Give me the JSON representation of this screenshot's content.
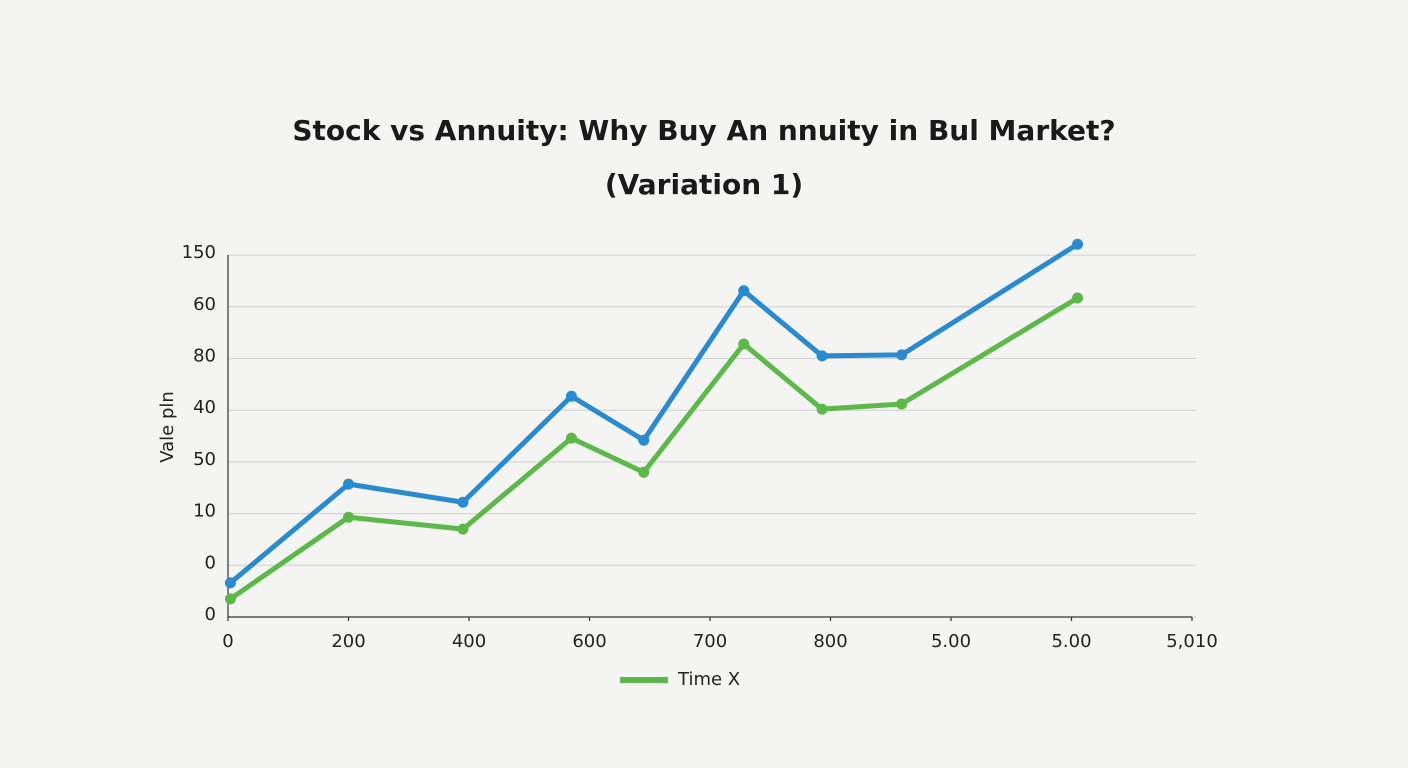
{
  "chart_data": {
    "type": "line",
    "title": "Stock vs Annuity: Why Buy An nnuity in Bul Market?",
    "subtitle": "(Variation 1)",
    "y_label": "Vale pln",
    "xlim": [
      0,
      8
    ],
    "xticks": [
      {
        "value": 0,
        "label": "0"
      },
      {
        "value": 1,
        "label": "200"
      },
      {
        "value": 2,
        "label": "400"
      },
      {
        "value": 3,
        "label": "600"
      },
      {
        "value": 4,
        "label": "700"
      },
      {
        "value": 5,
        "label": "800"
      },
      {
        "value": 6,
        "label": "5.00"
      },
      {
        "value": 7,
        "label": "5.00"
      },
      {
        "value": 8,
        "label": "5,010"
      }
    ],
    "ylim": [
      0,
      7.3
    ],
    "yticks": [
      {
        "value": 0,
        "label": "0"
      },
      {
        "value": 1,
        "label": "0"
      },
      {
        "value": 2,
        "label": "10"
      },
      {
        "value": 3,
        "label": "50"
      },
      {
        "value": 4,
        "label": "40"
      },
      {
        "value": 5,
        "label": "80"
      },
      {
        "value": 6,
        "label": "60"
      },
      {
        "value": 7,
        "label": "150"
      }
    ],
    "grid": true,
    "x": [
      0.02,
      1.0,
      1.95,
      2.85,
      3.45,
      4.28,
      4.93,
      5.59,
      7.05
    ],
    "series": [
      {
        "color": "#2a8ad0",
        "values": [
          0.66,
          2.57,
          2.22,
          4.27,
          3.42,
          6.31,
          5.05,
          5.07,
          7.21
        ]
      },
      {
        "name": "Time X",
        "color": "#5cb848",
        "values": [
          0.35,
          1.93,
          1.7,
          3.46,
          2.8,
          5.28,
          4.02,
          4.12,
          6.17
        ]
      }
    ],
    "legend": "bottom"
  }
}
